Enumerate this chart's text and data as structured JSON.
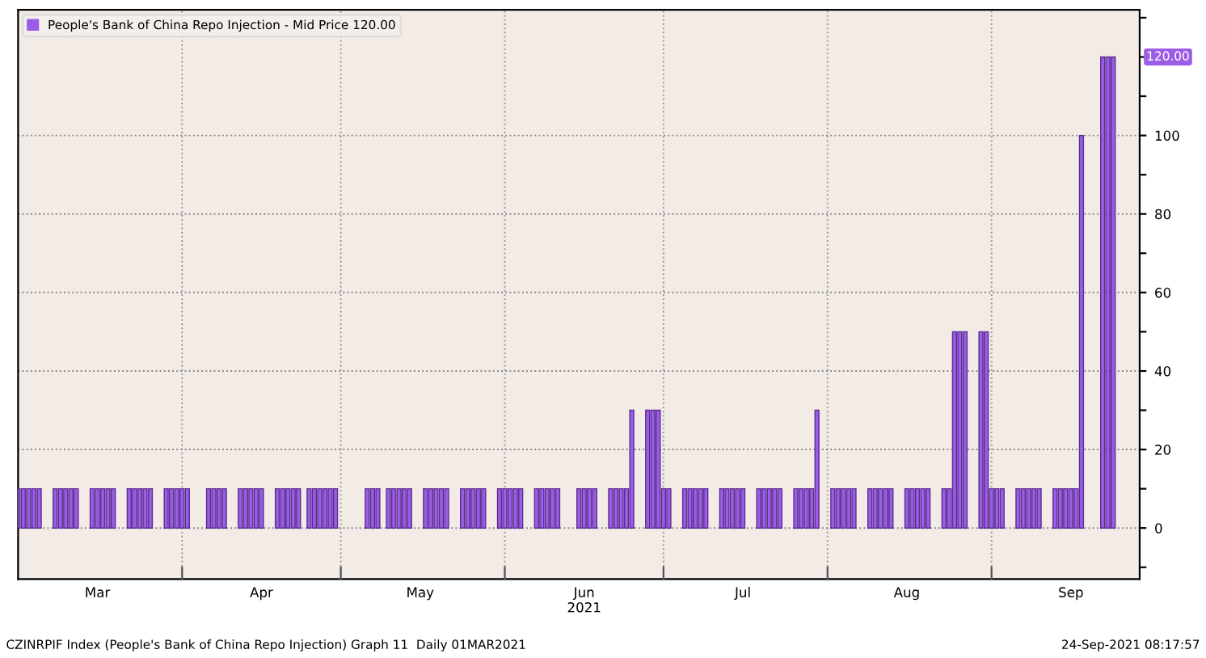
{
  "chart_data": {
    "type": "bar",
    "series": [
      {
        "name": "People's Bank of China Repo Injection - Mid Price 120.00",
        "color": "#9b5de5",
        "x": [
          "2021-03-01",
          "2021-03-02",
          "2021-03-03",
          "2021-03-04",
          "2021-03-05",
          "2021-03-08",
          "2021-03-09",
          "2021-03-10",
          "2021-03-11",
          "2021-03-12",
          "2021-03-15",
          "2021-03-16",
          "2021-03-17",
          "2021-03-18",
          "2021-03-19",
          "2021-03-22",
          "2021-03-23",
          "2021-03-24",
          "2021-03-25",
          "2021-03-26",
          "2021-03-29",
          "2021-03-30",
          "2021-03-31",
          "2021-04-01",
          "2021-04-02",
          "2021-04-06",
          "2021-04-07",
          "2021-04-08",
          "2021-04-09",
          "2021-04-12",
          "2021-04-13",
          "2021-04-14",
          "2021-04-15",
          "2021-04-16",
          "2021-04-19",
          "2021-04-20",
          "2021-04-21",
          "2021-04-22",
          "2021-04-23",
          "2021-04-25",
          "2021-04-26",
          "2021-04-27",
          "2021-04-28",
          "2021-04-29",
          "2021-04-30",
          "2021-05-06",
          "2021-05-07",
          "2021-05-08",
          "2021-05-10",
          "2021-05-11",
          "2021-05-12",
          "2021-05-13",
          "2021-05-14",
          "2021-05-17",
          "2021-05-18",
          "2021-05-19",
          "2021-05-20",
          "2021-05-21",
          "2021-05-24",
          "2021-05-25",
          "2021-05-26",
          "2021-05-27",
          "2021-05-28",
          "2021-05-31",
          "2021-06-01",
          "2021-06-02",
          "2021-06-03",
          "2021-06-04",
          "2021-06-07",
          "2021-06-08",
          "2021-06-09",
          "2021-06-10",
          "2021-06-11",
          "2021-06-15",
          "2021-06-16",
          "2021-06-17",
          "2021-06-18",
          "2021-06-21",
          "2021-06-22",
          "2021-06-23",
          "2021-06-24",
          "2021-06-25",
          "2021-06-28",
          "2021-06-29",
          "2021-06-30",
          "2021-07-01",
          "2021-07-02",
          "2021-07-05",
          "2021-07-06",
          "2021-07-07",
          "2021-07-08",
          "2021-07-09",
          "2021-07-12",
          "2021-07-13",
          "2021-07-14",
          "2021-07-15",
          "2021-07-16",
          "2021-07-19",
          "2021-07-20",
          "2021-07-21",
          "2021-07-22",
          "2021-07-23",
          "2021-07-26",
          "2021-07-27",
          "2021-07-28",
          "2021-07-29",
          "2021-07-30",
          "2021-08-02",
          "2021-08-03",
          "2021-08-04",
          "2021-08-05",
          "2021-08-06",
          "2021-08-09",
          "2021-08-10",
          "2021-08-11",
          "2021-08-12",
          "2021-08-13",
          "2021-08-16",
          "2021-08-17",
          "2021-08-18",
          "2021-08-19",
          "2021-08-20",
          "2021-08-23",
          "2021-08-24",
          "2021-08-25",
          "2021-08-26",
          "2021-08-27",
          "2021-08-30",
          "2021-08-31",
          "2021-09-01",
          "2021-09-02",
          "2021-09-03",
          "2021-09-06",
          "2021-09-07",
          "2021-09-08",
          "2021-09-09",
          "2021-09-10",
          "2021-09-13",
          "2021-09-14",
          "2021-09-15",
          "2021-09-16",
          "2021-09-17",
          "2021-09-18",
          "2021-09-22",
          "2021-09-23",
          "2021-09-24"
        ],
        "values": [
          10,
          10,
          10,
          10,
          10,
          10,
          10,
          10,
          10,
          10,
          10,
          10,
          10,
          10,
          10,
          10,
          10,
          10,
          10,
          10,
          10,
          10,
          10,
          10,
          10,
          10,
          10,
          10,
          10,
          10,
          10,
          10,
          10,
          10,
          10,
          10,
          10,
          10,
          10,
          10,
          10,
          10,
          10,
          10,
          10,
          10,
          10,
          10,
          10,
          10,
          10,
          10,
          10,
          10,
          10,
          10,
          10,
          10,
          10,
          10,
          10,
          10,
          10,
          10,
          10,
          10,
          10,
          10,
          10,
          10,
          10,
          10,
          10,
          10,
          10,
          10,
          10,
          10,
          10,
          10,
          10,
          30,
          30,
          30,
          30,
          10,
          10,
          10,
          10,
          10,
          10,
          10,
          10,
          10,
          10,
          10,
          10,
          10,
          10,
          10,
          10,
          10,
          10,
          10,
          10,
          10,
          30,
          10,
          10,
          10,
          10,
          10,
          10,
          10,
          10,
          10,
          10,
          10,
          10,
          10,
          10,
          10,
          10,
          10,
          50,
          50,
          50,
          50,
          50,
          10,
          10,
          10,
          10,
          10,
          10,
          10,
          10,
          10,
          10,
          10,
          10,
          10,
          100,
          120,
          120,
          120
        ]
      }
    ],
    "xlim": [
      "2021-03-01",
      "2021-09-29"
    ],
    "xticks": [
      {
        "value": "2021-03-16",
        "label": "Mar"
      },
      {
        "value": "2021-04-01",
        "label": null
      },
      {
        "value": "2021-04-16",
        "label": "Apr"
      },
      {
        "value": "2021-05-01",
        "label": null
      },
      {
        "value": "2021-05-16",
        "label": "May"
      },
      {
        "value": "2021-06-01",
        "label": null
      },
      {
        "value": "2021-06-16",
        "label": "Jun\n2021"
      },
      {
        "value": "2021-07-01",
        "label": null
      },
      {
        "value": "2021-07-16",
        "label": "Jul"
      },
      {
        "value": "2021-08-01",
        "label": null
      },
      {
        "value": "2021-08-16",
        "label": "Aug"
      },
      {
        "value": "2021-09-01",
        "label": null
      },
      {
        "value": "2021-09-16",
        "label": "Sep"
      }
    ],
    "ylim": [
      -13,
      132
    ],
    "yticks": [
      {
        "value": -10,
        "label": null
      },
      0,
      {
        "value": 10,
        "label": null
      },
      20,
      {
        "value": 30,
        "label": null
      },
      40,
      {
        "value": 50,
        "label": null
      },
      60,
      {
        "value": 70,
        "label": null
      },
      80,
      {
        "value": 90,
        "label": null
      },
      100,
      {
        "value": 110,
        "label": null
      },
      {
        "value": 120,
        "label": null
      },
      {
        "value": 130,
        "label": null
      }
    ],
    "grid": true,
    "legend": "top left",
    "annotations": [
      {
        "text": "120.00",
        "y": 120
      },
      "CZINRPIF Index (People's Bank of China Repo Injection) Graph 11  Daily 01MAR2021",
      "24-Sep-2021 08:17:57"
    ]
  }
}
